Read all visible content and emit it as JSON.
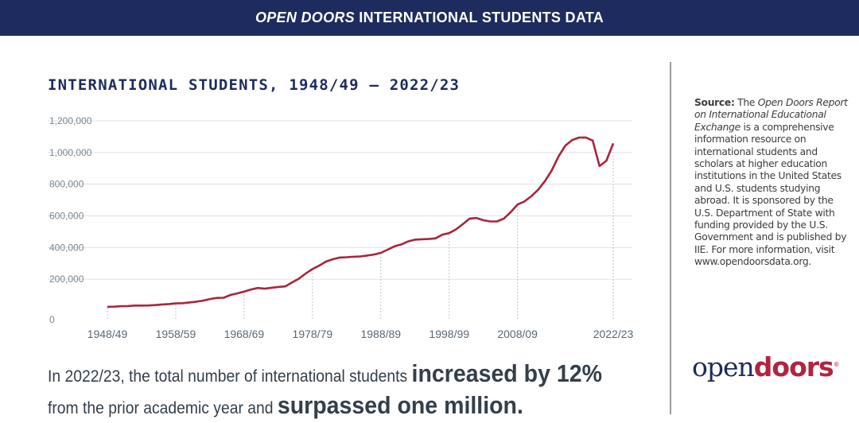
{
  "header": {
    "title_italic": "OPEN DOORS",
    "title_rest": " INTERNATIONAL STUDENTS DATA"
  },
  "colors": {
    "navy": "#1e2b5e",
    "line": "#a8253a",
    "accent": "#b1243f"
  },
  "sidebar": {
    "source_label": "Source:",
    "source_pre": " The ",
    "source_italic": "Open Doors Report on International Educational Exchange",
    "source_text": " is a comprehensive information resource on international students and scholars at higher education institutions in the United States and U.S. students studying abroad. It is sponsored by the U.S. Department of State with funding provided by the U.S. Government and is published by IIE. For more information, visit www.opendoorsdata.org.",
    "logo_part1": "open",
    "logo_part2": "doors",
    "logo_mark": "®"
  },
  "summary": {
    "p1": "In 2022/23, the total number of international students ",
    "p2": "increased by 12%",
    "p3": "from the prior academic year and ",
    "p4": "surpassed one million."
  },
  "chart_data": {
    "type": "line",
    "title": "INTERNATIONAL STUDENTS, 1948/49 – 2022/23",
    "xlabel": "",
    "ylabel": "",
    "ylim": [
      0,
      1200000
    ],
    "y_ticks": [
      "0",
      "200,000",
      "400,000",
      "600,000",
      "800,000",
      "1,000,000",
      "1,200,000"
    ],
    "x_ticks": [
      "1948/49",
      "1958/59",
      "1968/69",
      "1978/79",
      "1988/89",
      "1998/99",
      "2008/09",
      "2022/23"
    ],
    "grid": true,
    "x": [
      "1948/49",
      "1949/50",
      "1950/51",
      "1951/52",
      "1952/53",
      "1953/54",
      "1954/55",
      "1955/56",
      "1956/57",
      "1957/58",
      "1958/59",
      "1959/60",
      "1960/61",
      "1961/62",
      "1962/63",
      "1963/64",
      "1964/65",
      "1965/66",
      "1966/67",
      "1967/68",
      "1968/69",
      "1969/70",
      "1970/71",
      "1971/72",
      "1972/73",
      "1973/74",
      "1974/75",
      "1975/76",
      "1976/77",
      "1977/78",
      "1978/79",
      "1979/80",
      "1980/81",
      "1981/82",
      "1982/83",
      "1983/84",
      "1984/85",
      "1985/86",
      "1986/87",
      "1987/88",
      "1988/89",
      "1989/90",
      "1990/91",
      "1991/92",
      "1992/93",
      "1993/94",
      "1994/95",
      "1995/96",
      "1996/97",
      "1997/98",
      "1998/99",
      "1999/00",
      "2000/01",
      "2001/02",
      "2002/03",
      "2003/04",
      "2004/05",
      "2005/06",
      "2006/07",
      "2007/08",
      "2008/09",
      "2009/10",
      "2010/11",
      "2011/12",
      "2012/13",
      "2013/14",
      "2014/15",
      "2015/16",
      "2016/17",
      "2017/18",
      "2018/19",
      "2019/20",
      "2020/21",
      "2021/22",
      "2022/23"
    ],
    "values": [
      25464,
      26433,
      29813,
      30462,
      33675,
      33833,
      34232,
      36494,
      40666,
      43391,
      47245,
      48486,
      53107,
      58086,
      64705,
      74814,
      82045,
      82709,
      100262,
      110315,
      121362,
      134959,
      144708,
      140126,
      146097,
      151066,
      154580,
      179344,
      203068,
      235509,
      263938,
      286343,
      311882,
      326299,
      336985,
      338894,
      342113,
      343777,
      349609,
      356187,
      366354,
      386851,
      407529,
      419585,
      438618,
      449749,
      452635,
      453787,
      457984,
      481280,
      490933,
      514723,
      547867,
      582996,
      586323,
      572509,
      565039,
      564766,
      582984,
      623805,
      671616,
      690923,
      723277,
      764495,
      819644,
      886052,
      974926,
      1043839,
      1078822,
      1094792,
      1095299,
      1075496,
      914095,
      948519,
      1057188
    ]
  }
}
